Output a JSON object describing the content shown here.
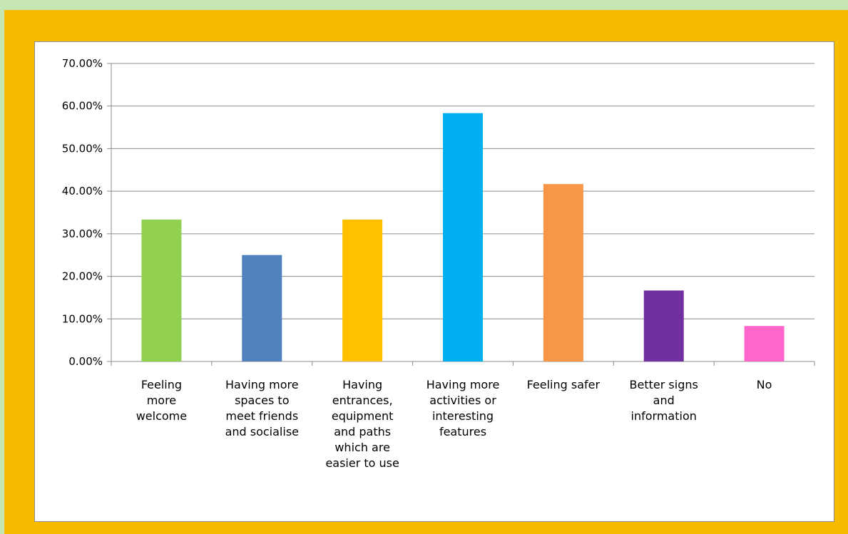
{
  "chart_data": {
    "type": "bar",
    "categories": [
      "Feeling more welcome",
      "Having more spaces to meet friends and socialise",
      "Having entrances, equipment and paths which are easier to use",
      "Having more activities or interesting features",
      "Feeling safer",
      "Better signs and information",
      "No"
    ],
    "category_labels_display": [
      "Feeling\nmore\nwelcome",
      "Having more\nspaces to\nmeet friends\nand socialise",
      "Having\nentrances,\nequipment\nand paths\nwhich are\neasier to use",
      "Having more\nactivities or\ninteresting\nfeatures",
      "Feeling safer",
      "Better signs\nand\ninformation",
      "No"
    ],
    "values": [
      33.33,
      25.0,
      33.33,
      58.33,
      41.67,
      16.67,
      8.33
    ],
    "colors": [
      "#92d050",
      "#4f81bd",
      "#ffc000",
      "#00b0f0",
      "#f79646",
      "#7030a0",
      "#ff66cc"
    ],
    "y_ticks": [
      "0.00%",
      "10.00%",
      "20.00%",
      "30.00%",
      "40.00%",
      "50.00%",
      "60.00%",
      "70.00%"
    ],
    "ylim": [
      0,
      70
    ],
    "grid": true,
    "title": "",
    "xlabel": "",
    "ylabel": ""
  }
}
